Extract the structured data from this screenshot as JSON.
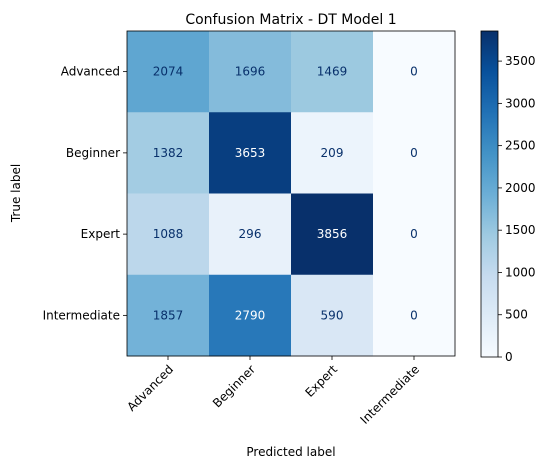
{
  "chart_data": {
    "type": "heatmap",
    "title": "Confusion Matrix - DT Model 1",
    "xlabel": "Predicted label",
    "ylabel": "True label",
    "x_categories": [
      "Advanced",
      "Beginner",
      "Expert",
      "Intermediate"
    ],
    "y_categories": [
      "Advanced",
      "Beginner",
      "Expert",
      "Intermediate"
    ],
    "values": [
      [
        2074,
        1696,
        1469,
        0
      ],
      [
        1382,
        3653,
        209,
        0
      ],
      [
        1088,
        296,
        3856,
        0
      ],
      [
        1857,
        2790,
        590,
        0
      ]
    ],
    "colormap": "Blues",
    "colorbar": {
      "vmin": 0,
      "vmax": 3856,
      "ticks": [
        "0",
        "500",
        "1000",
        "1500",
        "2000",
        "2500",
        "3000",
        "3500"
      ]
    },
    "grid": false
  }
}
